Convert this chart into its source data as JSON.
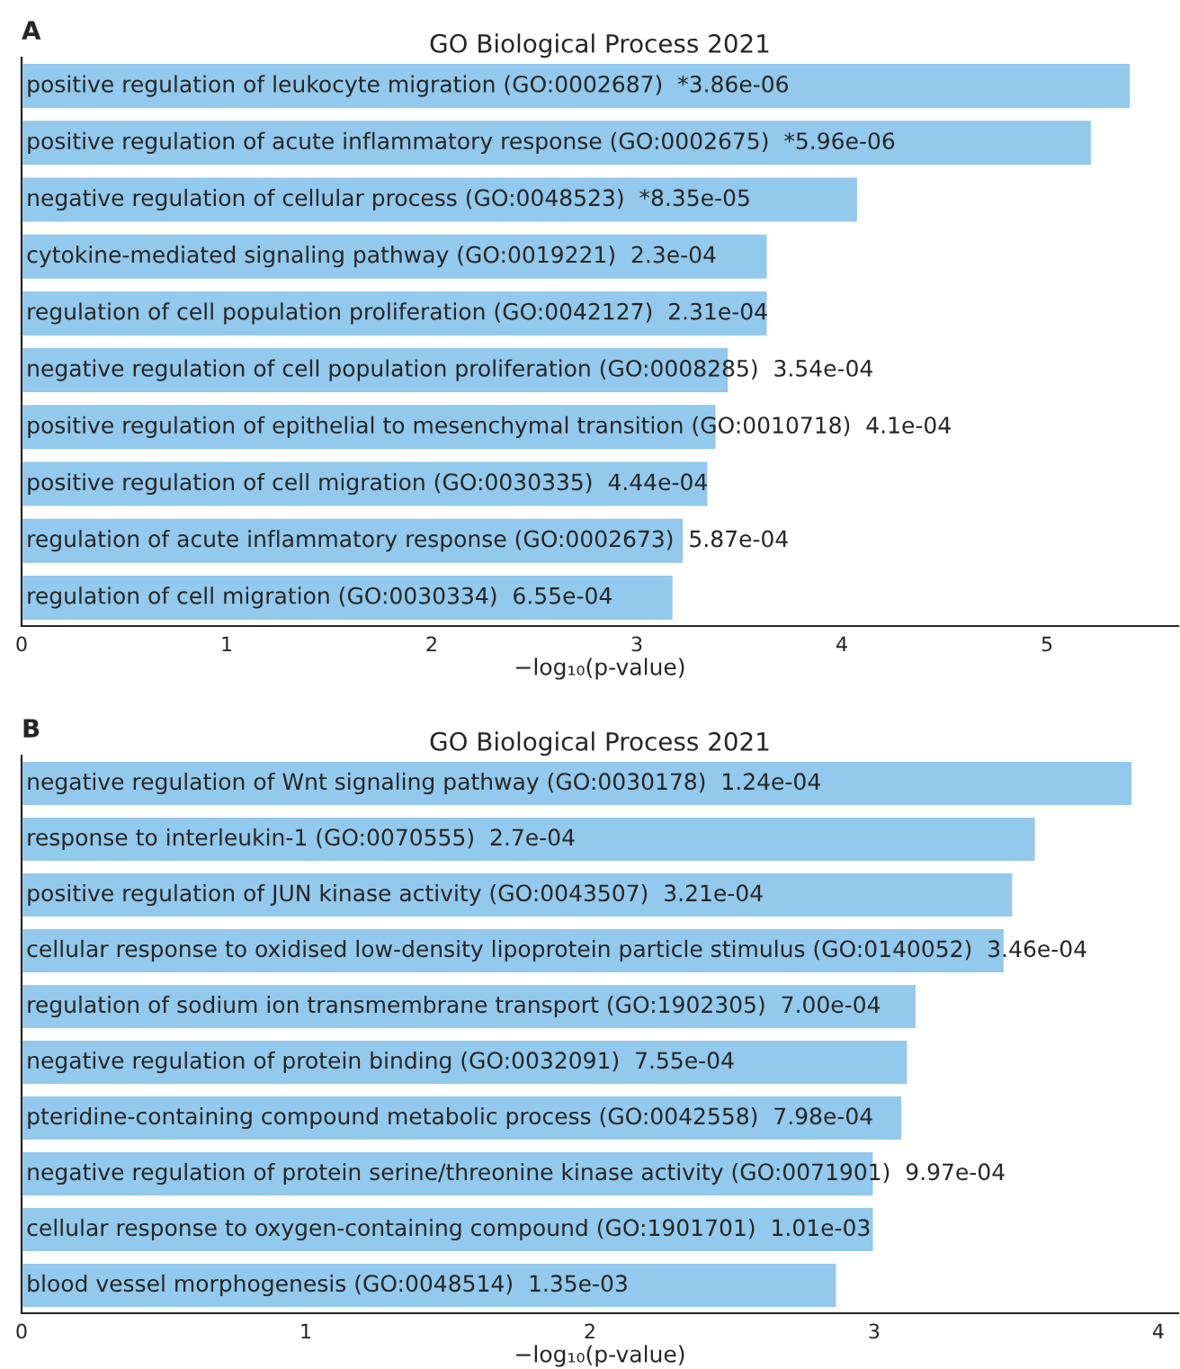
{
  "chart_data": [
    {
      "type": "bar",
      "orientation": "horizontal",
      "title": "GO Biological Process 2021",
      "xlabel": "−log₁₀(p-value)",
      "annotations": [
        "A"
      ],
      "categories": [
        "positive regulation of leukocyte migration (GO:0002687)  *3.86e-06",
        "positive regulation of acute inflammatory response (GO:0002675)  *5.96e-06",
        "negative regulation of cellular process (GO:0048523)  *8.35e-05",
        "cytokine-mediated signaling pathway (GO:0019221)  2.3e-04",
        "regulation of cell population proliferation (GO:0042127)  2.31e-04",
        "negative regulation of cell population proliferation (GO:0008285)  3.54e-04",
        "positive regulation of epithelial to mesenchymal transition (GO:0010718)  4.1e-04",
        "positive regulation of cell migration (GO:0030335)  4.44e-04",
        "regulation of acute inflammatory response (GO:0002673)  5.87e-04",
        "regulation of cell migration (GO:0030334)  6.55e-04"
      ],
      "values": [
        5.41,
        5.22,
        4.08,
        3.64,
        3.64,
        3.45,
        3.39,
        3.35,
        3.23,
        3.18
      ],
      "color": "#92c9ec",
      "xlim": [
        0,
        5.64
      ],
      "xticks": [
        0,
        1,
        2,
        3,
        4,
        5
      ],
      "grid": false,
      "legend": false
    },
    {
      "type": "bar",
      "orientation": "horizontal",
      "title": "GO Biological Process 2021",
      "xlabel": "−log₁₀(p-value)",
      "annotations": [
        "B"
      ],
      "categories": [
        "negative regulation of Wnt signaling pathway (GO:0030178)  1.24e-04",
        "response to interleukin-1 (GO:0070555)  2.7e-04",
        "positive regulation of JUN kinase activity (GO:0043507)  3.21e-04",
        "cellular response to oxidised low-density lipoprotein particle stimulus (GO:0140052)  3.46e-04",
        "regulation of sodium ion transmembrane transport (GO:1902305)  7.00e-04",
        "negative regulation of protein binding (GO:0032091)  7.55e-04",
        "pteridine-containing compound metabolic process (GO:0042558)  7.98e-04",
        "negative regulation of protein serine/threonine kinase activity (GO:0071901)  9.97e-04",
        "cellular response to oxygen-containing compound (GO:1901701)  1.01e-03",
        "blood vessel morphogenesis (GO:0048514)  1.35e-03"
      ],
      "values": [
        3.91,
        3.57,
        3.49,
        3.46,
        3.15,
        3.12,
        3.1,
        3.0,
        3.0,
        2.87
      ],
      "color": "#92c9ec",
      "xlim": [
        0,
        4.07
      ],
      "xticks": [
        0,
        1,
        2,
        3,
        4
      ],
      "grid": false,
      "legend": false
    }
  ]
}
